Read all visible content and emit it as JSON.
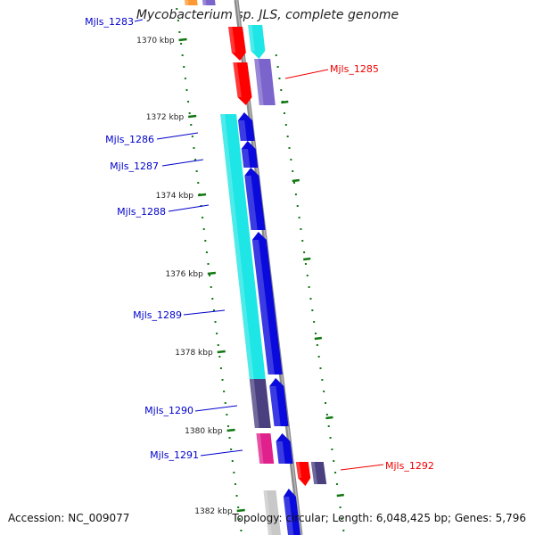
{
  "header": {
    "title": "Mycobacterium sp. JLS, complete genome"
  },
  "footer": {
    "accession": "Accession: NC_009077",
    "topology": "Topology: circular; Length: 6,048,425 bp; Genes: 5,796"
  },
  "colors": {
    "cds_cyan": "#1ee6e6",
    "cds_blue": "#0a0adc",
    "cds_red": "#ff0000",
    "cds_slate": "#4a4080",
    "cds_lavender": "#7b64cc",
    "cds_magenta": "#e0208c",
    "cds_orange": "#ff9933",
    "cds_grey": "#c8c8c8",
    "backbone": "#8a8a8a",
    "tick": "#117711",
    "label_blue": "#0000cc",
    "label_red": "#ee0000"
  },
  "ticks": [
    {
      "label": "1370 kbp"
    },
    {
      "label": "1372 kbp"
    },
    {
      "label": "1374 kbp"
    },
    {
      "label": "1376 kbp"
    },
    {
      "label": "1378 kbp"
    },
    {
      "label": "1380 kbp"
    },
    {
      "label": "1382 kbp"
    }
  ],
  "genes": [
    {
      "label": "Mjls_1283"
    },
    {
      "label": "Mjls_1285"
    },
    {
      "label": "Mjls_1286"
    },
    {
      "label": "Mjls_1287"
    },
    {
      "label": "Mjls_1288"
    },
    {
      "label": "Mjls_1289"
    },
    {
      "label": "Mjls_1290"
    },
    {
      "label": "Mjls_1291"
    },
    {
      "label": "Mjls_1292"
    }
  ]
}
